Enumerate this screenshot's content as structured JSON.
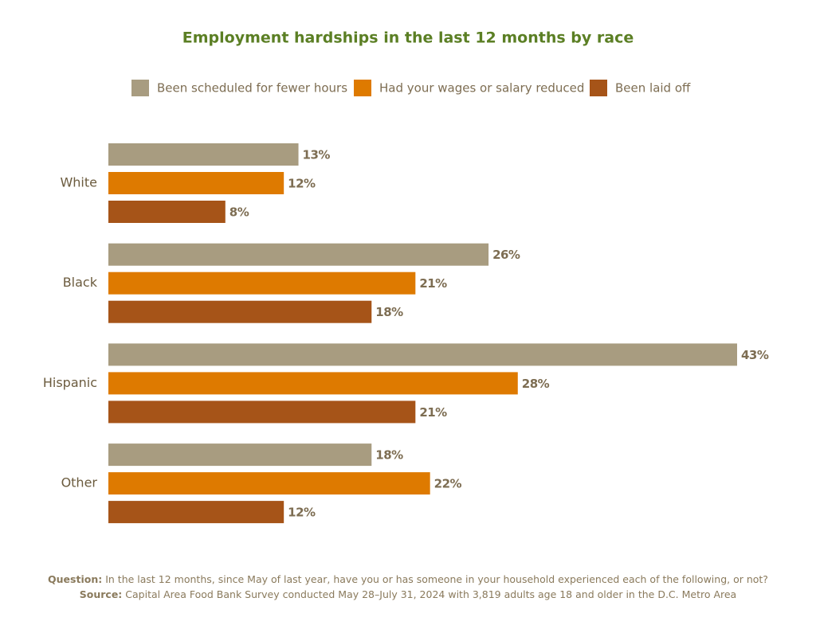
{
  "chart_data": {
    "type": "hbar",
    "title": "Employment hardships in the last 12 months by race",
    "categories": [
      "White",
      "Black",
      "Hispanic",
      "Other"
    ],
    "series": [
      {
        "name": "Been scheduled for fewer hours",
        "color": "#a89c80",
        "values": [
          13,
          26,
          43,
          18
        ],
        "value_labels": [
          "13%",
          "26%",
          "43%",
          "18%"
        ]
      },
      {
        "name": "Had your wages or salary reduced",
        "color": "#de7a00",
        "values": [
          12,
          21,
          28,
          22
        ],
        "value_labels": [
          "12%",
          "21%",
          "28%",
          "22%"
        ]
      },
      {
        "name": "Been laid off",
        "color": "#a65418",
        "values": [
          8,
          18,
          21,
          12
        ],
        "value_labels": [
          "8%",
          "18%",
          "21%",
          "12%"
        ]
      }
    ],
    "notes": [
      {
        "label": "Question:",
        "text": "In the last 12 months, since May of last year, have you or has someone in your household experienced each of the following, or not?"
      },
      {
        "label": "Source:",
        "text": "Capital Area Food Bank Survey conducted May 28–July 31, 2024 with 3,819 adults age 18 and older in the D.C. Metro Area"
      }
    ]
  }
}
